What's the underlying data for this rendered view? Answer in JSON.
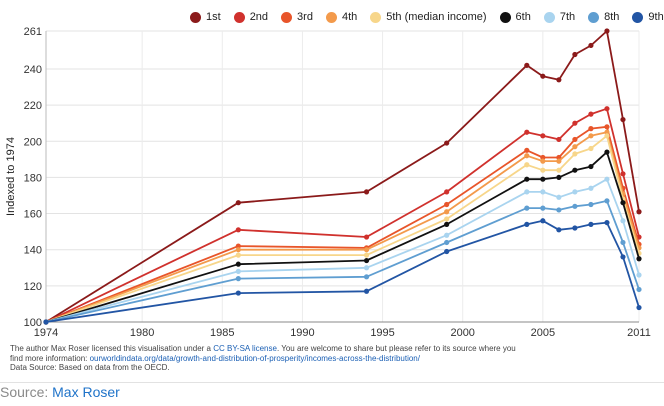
{
  "chart_data": {
    "type": "line",
    "ylabel": "Indexed to 1974",
    "xlim": [
      1974,
      2011
    ],
    "ylim": [
      100,
      261
    ],
    "x_ticks": [
      "1974",
      "1980",
      "1985",
      "1990",
      "1995",
      "2000",
      "2005",
      "2011"
    ],
    "y_ticks": [
      "100",
      "120",
      "140",
      "160",
      "180",
      "200",
      "220",
      "240",
      "261"
    ],
    "grid": true,
    "legend_position": "top",
    "series": [
      {
        "name": "1st",
        "color": "#8b1a1a",
        "x": [
          1974,
          1986,
          1994,
          1999,
          2004,
          2005,
          2006,
          2007,
          2008,
          2009,
          2010,
          2011
        ],
        "y": [
          100,
          166,
          172,
          199,
          242,
          236,
          234,
          248,
          253,
          261,
          212,
          161
        ]
      },
      {
        "name": "2nd",
        "color": "#d0312d",
        "x": [
          1974,
          1986,
          1994,
          1999,
          2004,
          2005,
          2006,
          2007,
          2008,
          2009,
          2010,
          2011
        ],
        "y": [
          100,
          151,
          147,
          172,
          205,
          203,
          201,
          210,
          215,
          218,
          182,
          147
        ]
      },
      {
        "name": "3rd",
        "color": "#e8552a",
        "x": [
          1974,
          1986,
          1994,
          1999,
          2004,
          2005,
          2006,
          2007,
          2008,
          2009,
          2010,
          2011
        ],
        "y": [
          100,
          142,
          141,
          165,
          195,
          191,
          191,
          201,
          207,
          208,
          174,
          143
        ]
      },
      {
        "name": "4th",
        "color": "#f39a4b",
        "x": [
          1974,
          1986,
          1994,
          1999,
          2004,
          2005,
          2006,
          2007,
          2008,
          2009,
          2010,
          2011
        ],
        "y": [
          100,
          140,
          140,
          161,
          192,
          189,
          189,
          197,
          203,
          205,
          171,
          141
        ]
      },
      {
        "name": "5th (median income)",
        "color": "#f7d68a",
        "x": [
          1974,
          1986,
          1994,
          1999,
          2004,
          2005,
          2006,
          2007,
          2008,
          2009,
          2010,
          2011
        ],
        "y": [
          100,
          137,
          137,
          157,
          187,
          184,
          184,
          193,
          196,
          203,
          168,
          138
        ]
      },
      {
        "name": "6th",
        "color": "#111111",
        "x": [
          1974,
          1986,
          1994,
          1999,
          2004,
          2005,
          2006,
          2007,
          2008,
          2009,
          2010,
          2011
        ],
        "y": [
          100,
          132,
          134,
          154,
          179,
          179,
          180,
          184,
          186,
          194,
          166,
          135
        ]
      },
      {
        "name": "7th",
        "color": "#a9d4ef",
        "x": [
          1974,
          1986,
          1994,
          1999,
          2004,
          2005,
          2006,
          2007,
          2008,
          2009,
          2010,
          2011
        ],
        "y": [
          100,
          128,
          130,
          148,
          172,
          172,
          169,
          172,
          174,
          179,
          156,
          126
        ]
      },
      {
        "name": "8th",
        "color": "#5f9ed1",
        "x": [
          1974,
          1986,
          1994,
          1999,
          2004,
          2005,
          2006,
          2007,
          2008,
          2009,
          2010,
          2011
        ],
        "y": [
          100,
          124,
          125,
          144,
          163,
          163,
          162,
          164,
          165,
          167,
          144,
          118
        ]
      },
      {
        "name": "9th",
        "color": "#2255a4",
        "x": [
          1974,
          1986,
          1994,
          1999,
          2004,
          2005,
          2006,
          2007,
          2008,
          2009,
          2010,
          2011
        ],
        "y": [
          100,
          116,
          117,
          139,
          154,
          156,
          151,
          152,
          154,
          155,
          136,
          108
        ]
      }
    ]
  },
  "credit": {
    "line1_a": "The author Max Roser licensed this visualisation under a ",
    "line1_link": "CC BY-SA license",
    "line1_b": ". You are welcome to share but please refer to its source where you",
    "line2_a": "find more information: ",
    "line2_link": "ourworldindata.org/data/growth-and-distribution-of-prosperity/incomes-across-the-distribution/",
    "line3": "Data Source: Based on data from the OECD."
  },
  "source": {
    "label": "Source: ",
    "link": "Max Roser"
  }
}
